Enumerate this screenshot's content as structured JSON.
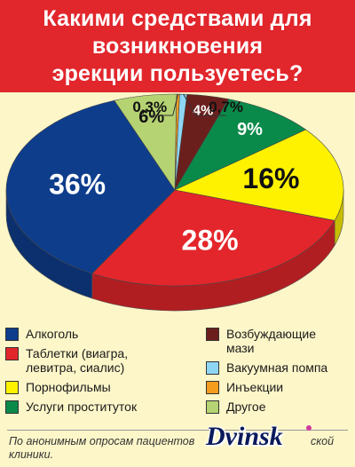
{
  "header": {
    "title_line1": "Какими средствами для",
    "title_line2": "возникновения",
    "title_line3": "эрекции пользуетесь?",
    "background": "#e1262c"
  },
  "chart_data": {
    "type": "pie",
    "title": "Какими средствами для возникновения эрекции пользуетесь?",
    "slices": [
      {
        "name": "Алкоголь",
        "value": 36,
        "label": "36%",
        "color": "#0e3d8c"
      },
      {
        "name": "Таблетки (виагра, левитра, сиалис)",
        "value": 28,
        "label": "28%",
        "color": "#e3262b"
      },
      {
        "name": "Порнофильмы",
        "value": 16,
        "label": "16%",
        "color": "#fff200"
      },
      {
        "name": "Услуги проституток",
        "value": 9,
        "label": "9%",
        "color": "#0a8a4a"
      },
      {
        "name": "Возбуждающие мази",
        "value": 4,
        "label": "4%",
        "color": "#6b1f1c"
      },
      {
        "name": "Вакуумная помпа",
        "value": 0.7,
        "label": "0,7%",
        "color": "#8fd6f5"
      },
      {
        "name": "Инъекции",
        "value": 0.3,
        "label": "0,3%",
        "color": "#f39c1e"
      },
      {
        "name": "Другое",
        "value": 6,
        "label": "6%",
        "color": "#b5d372"
      }
    ],
    "legend_placement": "bottom"
  },
  "legend": {
    "col1": [
      {
        "label_line1": "Алкоголь",
        "label_line2": "",
        "color": "#0e3d8c"
      },
      {
        "label_line1": "Таблетки (виагра,",
        "label_line2": "левитра, сиалис)",
        "color": "#e3262b"
      },
      {
        "label_line1": "Порнофильмы",
        "label_line2": "",
        "color": "#fff200"
      },
      {
        "label_line1": "Услуги проституток",
        "label_line2": "",
        "color": "#0a8a4a"
      }
    ],
    "col2": [
      {
        "label_line1": "Возбуждающие",
        "label_line2": "мази",
        "color": "#6b1f1c"
      },
      {
        "label_line1": "Вакуумная помпа",
        "label_line2": "",
        "color": "#8fd6f5"
      },
      {
        "label_line1": "Инъекции",
        "label_line2": "",
        "color": "#f39c1e"
      },
      {
        "label_line1": "Другое",
        "label_line2": "",
        "color": "#b5d372"
      }
    ]
  },
  "source": {
    "line1": "По анонимным опросам пациентов",
    "line1_tail": "ской",
    "line2": "клиники."
  },
  "watermark": "Dvinsk"
}
